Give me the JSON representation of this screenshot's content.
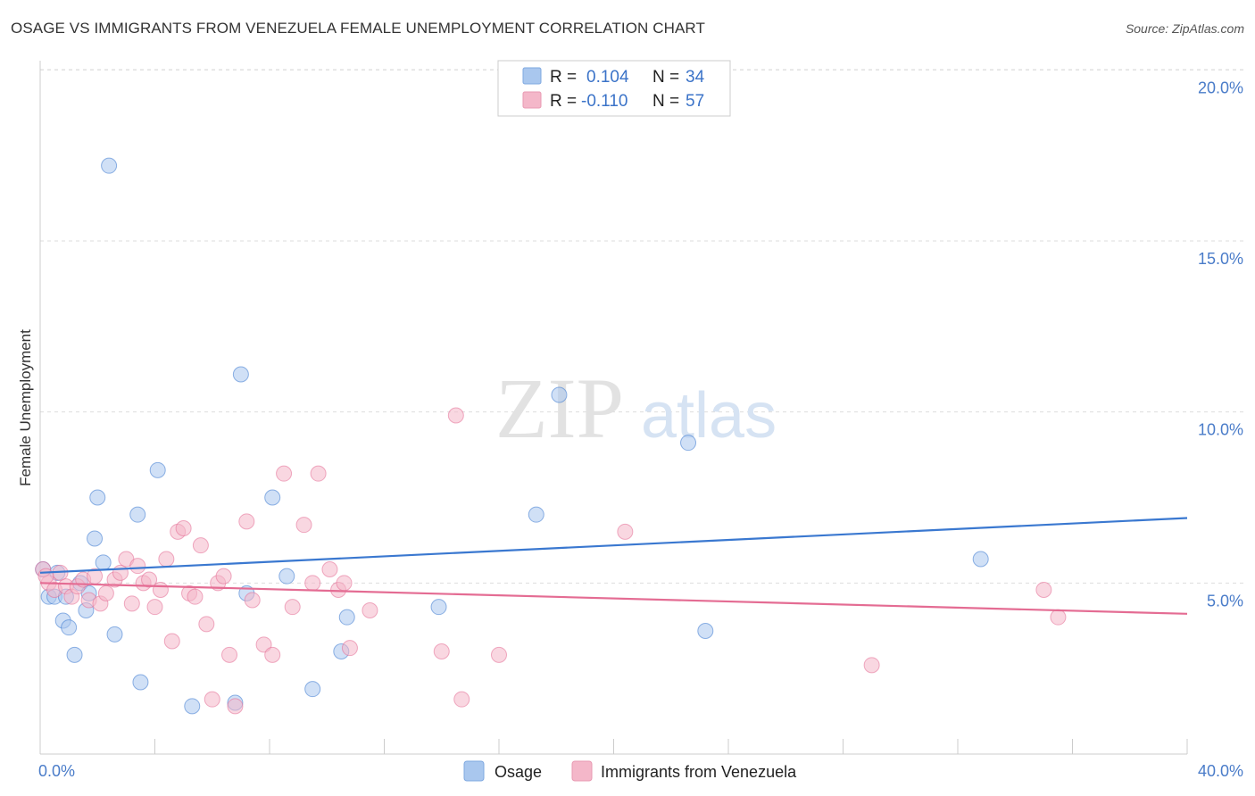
{
  "title": "OSAGE VS IMMIGRANTS FROM VENEZUELA FEMALE UNEMPLOYMENT CORRELATION CHART",
  "source": "Source: ZipAtlas.com",
  "watermark": {
    "zip": "ZIP",
    "atlas": "atlas"
  },
  "legend_top": {
    "rows": [
      {
        "r_label": "R = ",
        "r_value": "0.104",
        "n_label": "N = ",
        "n_value": "34",
        "color": "#a9c7ee"
      },
      {
        "r_label": "R = ",
        "r_value": "-0.110",
        "n_label": "N = ",
        "n_value": "57",
        "color": "#f4b7c9"
      }
    ]
  },
  "chart_data": {
    "type": "scatter",
    "title": "OSAGE VS IMMIGRANTS FROM VENEZUELA FEMALE UNEMPLOYMENT CORRELATION CHART",
    "xlabel": "",
    "ylabel": "Female Unemployment",
    "xlim": [
      0,
      40
    ],
    "ylim": [
      0,
      21
    ],
    "x_ticks": [
      "0.0%",
      "40.0%"
    ],
    "y_ticks": [
      "5.0%",
      "10.0%",
      "15.0%",
      "20.0%"
    ],
    "y_tick_values": [
      5,
      10,
      15,
      20
    ],
    "grid": true,
    "series": [
      {
        "name": "Osage",
        "color": "#3a78d0",
        "fill": "#a9c7ee",
        "trend": {
          "x": [
            0,
            40
          ],
          "y": [
            5.3,
            6.9
          ]
        },
        "points": [
          [
            0.1,
            5.4
          ],
          [
            0.3,
            4.6
          ],
          [
            0.5,
            4.6
          ],
          [
            0.6,
            5.3
          ],
          [
            0.8,
            3.9
          ],
          [
            0.9,
            4.6
          ],
          [
            1.0,
            3.7
          ],
          [
            1.2,
            2.9
          ],
          [
            1.4,
            5.0
          ],
          [
            1.6,
            4.2
          ],
          [
            1.7,
            4.7
          ],
          [
            1.9,
            6.3
          ],
          [
            2.0,
            7.5
          ],
          [
            2.2,
            5.6
          ],
          [
            2.4,
            17.2
          ],
          [
            2.6,
            3.5
          ],
          [
            3.4,
            7.0
          ],
          [
            3.5,
            2.1
          ],
          [
            4.1,
            8.3
          ],
          [
            5.3,
            1.4
          ],
          [
            6.8,
            1.5
          ],
          [
            7.0,
            11.1
          ],
          [
            7.2,
            4.7
          ],
          [
            8.1,
            7.5
          ],
          [
            8.6,
            5.2
          ],
          [
            9.5,
            1.9
          ],
          [
            10.5,
            3.0
          ],
          [
            10.7,
            4.0
          ],
          [
            13.9,
            4.3
          ],
          [
            17.3,
            7.0
          ],
          [
            18.1,
            10.5
          ],
          [
            22.6,
            9.1
          ],
          [
            23.2,
            3.6
          ],
          [
            32.8,
            5.7
          ]
        ]
      },
      {
        "name": "Immigrants from Venezuela",
        "color": "#e46c93",
        "fill": "#f4b7c9",
        "trend": {
          "x": [
            0,
            40
          ],
          "y": [
            5.0,
            4.1
          ]
        },
        "points": [
          [
            0.1,
            5.4
          ],
          [
            0.3,
            5.0
          ],
          [
            0.5,
            4.8
          ],
          [
            0.7,
            5.3
          ],
          [
            0.9,
            4.9
          ],
          [
            1.1,
            4.6
          ],
          [
            1.3,
            4.9
          ],
          [
            1.5,
            5.1
          ],
          [
            1.7,
            4.5
          ],
          [
            1.9,
            5.2
          ],
          [
            2.1,
            4.4
          ],
          [
            2.3,
            4.7
          ],
          [
            2.6,
            5.1
          ],
          [
            2.8,
            5.3
          ],
          [
            3.0,
            5.7
          ],
          [
            3.2,
            4.4
          ],
          [
            3.4,
            5.5
          ],
          [
            3.6,
            5.0
          ],
          [
            3.8,
            5.1
          ],
          [
            4.0,
            4.3
          ],
          [
            4.2,
            4.8
          ],
          [
            4.4,
            5.7
          ],
          [
            4.6,
            3.3
          ],
          [
            4.8,
            6.5
          ],
          [
            5.0,
            6.6
          ],
          [
            5.2,
            4.7
          ],
          [
            5.4,
            4.6
          ],
          [
            5.6,
            6.1
          ],
          [
            5.8,
            3.8
          ],
          [
            6.0,
            1.6
          ],
          [
            6.2,
            5.0
          ],
          [
            6.4,
            5.2
          ],
          [
            6.6,
            2.9
          ],
          [
            6.8,
            1.4
          ],
          [
            7.2,
            6.8
          ],
          [
            7.4,
            4.5
          ],
          [
            7.8,
            3.2
          ],
          [
            8.1,
            2.9
          ],
          [
            8.5,
            8.2
          ],
          [
            8.8,
            4.3
          ],
          [
            9.2,
            6.7
          ],
          [
            9.5,
            5.0
          ],
          [
            9.7,
            8.2
          ],
          [
            10.1,
            5.4
          ],
          [
            10.4,
            4.8
          ],
          [
            10.6,
            5.0
          ],
          [
            10.8,
            3.1
          ],
          [
            11.5,
            4.2
          ],
          [
            14.0,
            3.0
          ],
          [
            14.5,
            9.9
          ],
          [
            14.7,
            1.6
          ],
          [
            16.0,
            2.9
          ],
          [
            20.4,
            6.5
          ],
          [
            29.0,
            2.6
          ],
          [
            35.0,
            4.8
          ],
          [
            35.5,
            4.0
          ],
          [
            0.2,
            5.2
          ]
        ]
      }
    ]
  },
  "legend_bottom": [
    {
      "label": "Osage",
      "color": "#a9c7ee"
    },
    {
      "label": "Immigrants from Venezuela",
      "color": "#f4b7c9"
    }
  ]
}
